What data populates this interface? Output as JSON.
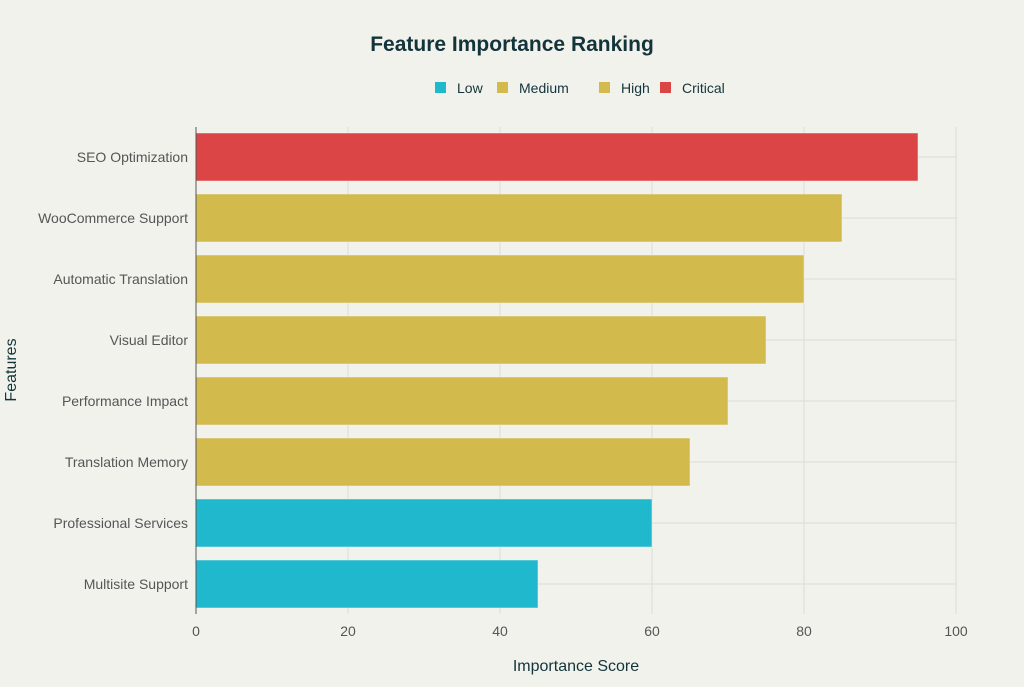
{
  "chart_data": {
    "type": "bar",
    "orientation": "horizontal",
    "title": "Feature Importance Ranking",
    "xlabel": "Importance Score",
    "ylabel": "Features",
    "xlim": [
      0,
      100
    ],
    "xticks": [
      0,
      20,
      40,
      60,
      80,
      100
    ],
    "grid": true,
    "legend_position": "top",
    "legend": [
      {
        "label": "Low",
        "color": "#1FB8CD"
      },
      {
        "label": "Medium",
        "color": "#D2BA4C"
      },
      {
        "label": "High",
        "color": "#D2BA4C"
      },
      {
        "label": "Critical",
        "color": "#DB4545"
      }
    ],
    "categories": [
      "SEO Optimization",
      "WooCommerce Support",
      "Automatic Translation",
      "Visual Editor",
      "Performance Impact",
      "Translation Memory",
      "Professional Services",
      "Multisite Support"
    ],
    "values": [
      95,
      85,
      80,
      75,
      70,
      65,
      60,
      45
    ],
    "colors": [
      "#DB4545",
      "#D2BA4C",
      "#D2BA4C",
      "#D2BA4C",
      "#D2BA4C",
      "#D2BA4C",
      "#1FB8CD",
      "#1FB8CD"
    ]
  }
}
